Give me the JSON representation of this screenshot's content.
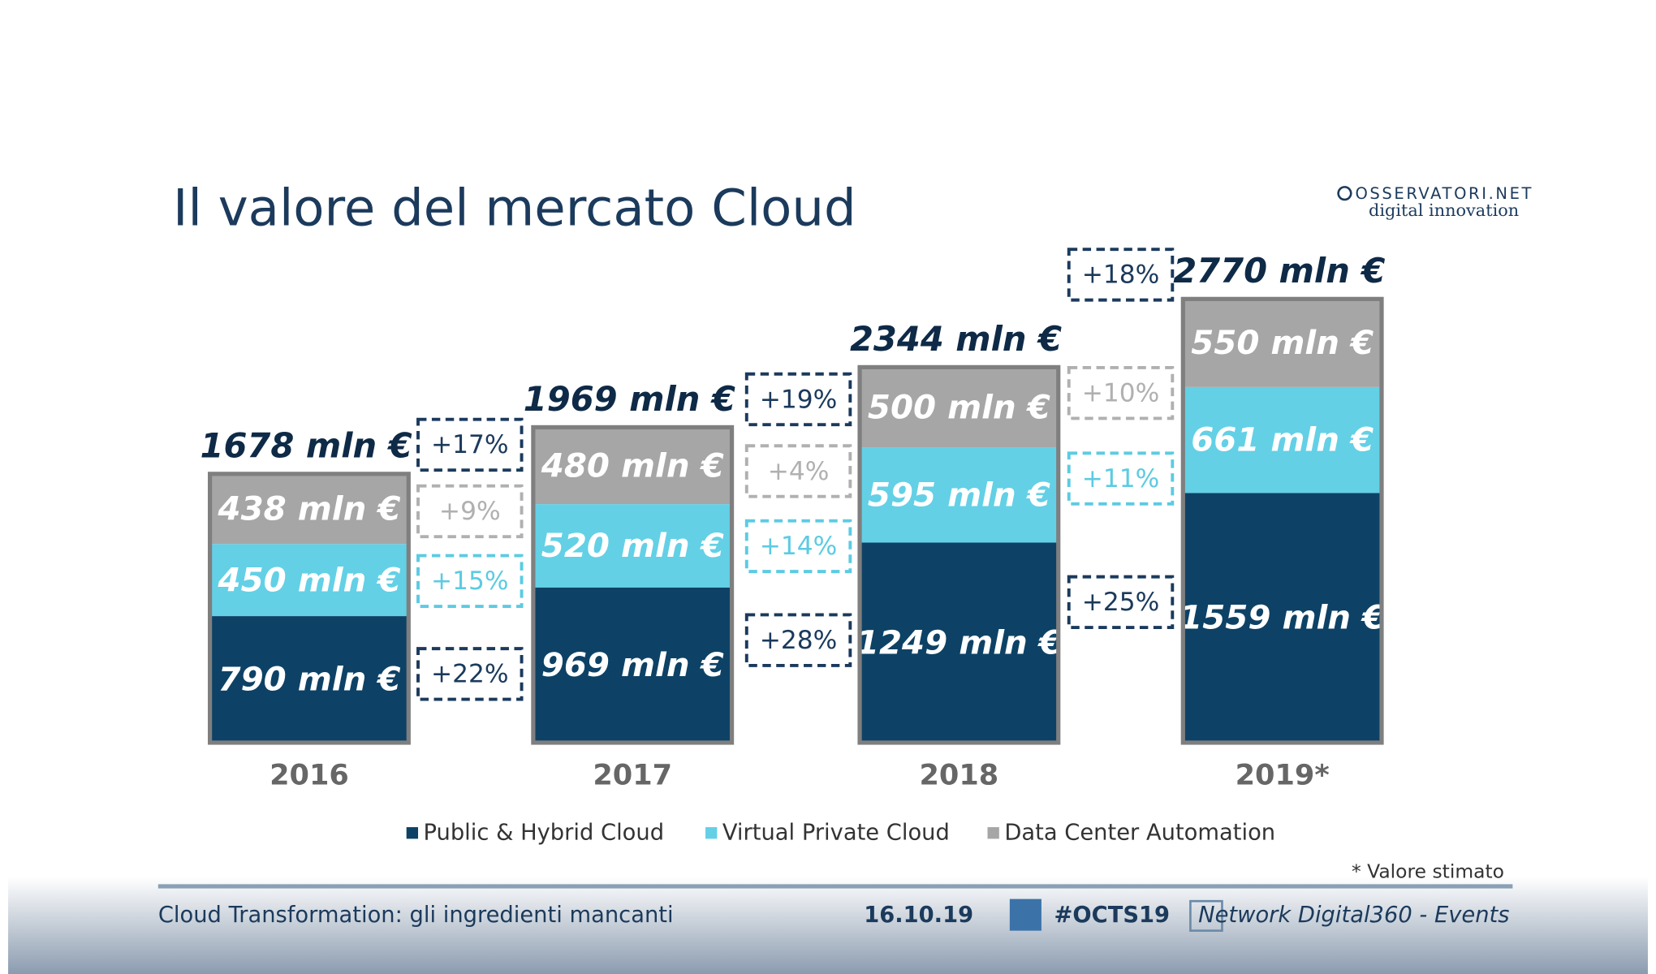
{
  "chart_data": {
    "type": "stacked-bar",
    "title": "Il valore del mercato Cloud",
    "logo": {
      "name": "OSSERVATORI.NET",
      "tagline": "digital innovation"
    },
    "categories": [
      "2016",
      "2017",
      "2018",
      "2019*"
    ],
    "series": [
      {
        "name": "Public & Hybrid Cloud",
        "color": "#0d4266",
        "values": [
          790,
          969,
          1249,
          1559
        ],
        "value_labels": [
          "790 mln €",
          "969 mln €",
          "1249 mln €",
          "1559 mln €"
        ],
        "growth": [
          {
            "value": 22,
            "label": "+22%"
          },
          {
            "value": 28,
            "label": "+28%"
          },
          {
            "value": 25,
            "label": "+25%"
          }
        ],
        "growth_color": "#1b3a5c"
      },
      {
        "name": "Virtual Private Cloud",
        "color": "#63d0e6",
        "values": [
          450,
          520,
          595,
          661
        ],
        "value_labels": [
          "450 mln €",
          "520 mln €",
          "595 mln €",
          "661 mln €"
        ],
        "growth": [
          {
            "value": 15,
            "label": "+15%"
          },
          {
            "value": 14,
            "label": "+14%"
          },
          {
            "value": 11,
            "label": "+11%"
          }
        ],
        "growth_color": "#5ccbe2"
      },
      {
        "name": "Data Center Automation",
        "color": "#a6a6a6",
        "values": [
          438,
          480,
          500,
          550
        ],
        "value_labels": [
          "438 mln €",
          "480 mln €",
          "500 mln €",
          "550 mln €"
        ],
        "growth": [
          {
            "value": 9,
            "label": "+9%"
          },
          {
            "value": 4,
            "label": "+4%"
          },
          {
            "value": 10,
            "label": "+10%"
          }
        ],
        "growth_color": "#b0b0b0"
      }
    ],
    "totals": {
      "values": [
        1678,
        1969,
        2344,
        2770
      ],
      "value_labels": [
        "1678 mln €",
        "1969 mln €",
        "2344 mln €",
        "2770 mln €"
      ],
      "growth": [
        {
          "value": 17,
          "label": "+17%"
        },
        {
          "value": 19,
          "label": "+19%"
        },
        {
          "value": 18,
          "label": "+18%"
        }
      ],
      "growth_color": "#1b3a5c"
    },
    "footnote": "* Valore stimato",
    "footer": {
      "left": "Cloud Transformation: gli ingredienti mancanti",
      "date": "16.10.19",
      "hashtag": "#OCTS19",
      "right": "Network Digital360 - Events"
    }
  }
}
